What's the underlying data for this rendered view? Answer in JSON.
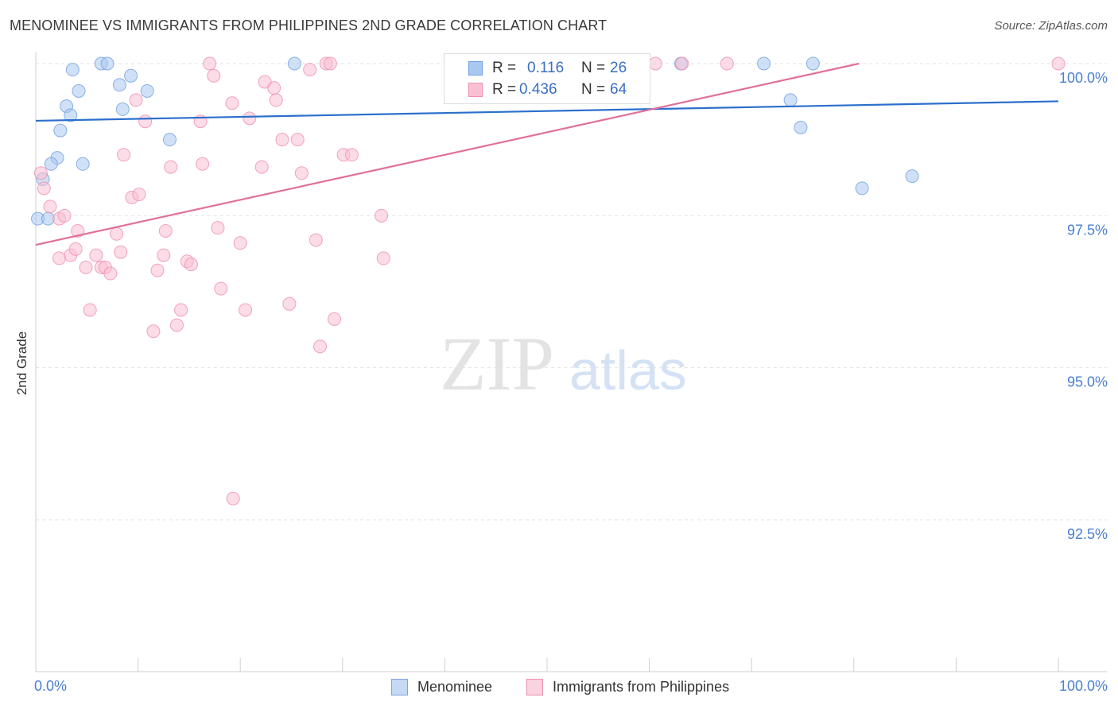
{
  "title": "MENOMINEE VS IMMIGRANTS FROM PHILIPPINES 2ND GRADE CORRELATION CHART",
  "source": "Source: ZipAtlas.com",
  "watermark": {
    "zip": "ZIP",
    "atlas": "atlas"
  },
  "stats": {
    "r_label": "R =",
    "n_label": "N =",
    "rows": [
      {
        "r": "0.116",
        "n": "26",
        "color": "#a9c8f0",
        "border": "#6f9fe0"
      },
      {
        "r": "0.436",
        "n": "64",
        "color": "#f9c0d3",
        "border": "#ef8db0"
      }
    ]
  },
  "legend": {
    "items": [
      {
        "label": "Menominee",
        "color": "#c5d9f5",
        "border": "#7ba5e3"
      },
      {
        "label": "Immigrants from Philippines",
        "color": "#fbd2df",
        "border": "#ec8fb0"
      }
    ]
  },
  "chart_data": {
    "type": "scatter",
    "title": "MENOMINEE VS IMMIGRANTS FROM PHILIPPINES 2ND GRADE CORRELATION CHART",
    "xlabel": "",
    "ylabel": "2nd Grade",
    "xlim": [
      0,
      100
    ],
    "ylim": [
      90.0,
      100.4
    ],
    "x_tick_labels": [
      {
        "value": 0,
        "label": "0.0%"
      },
      {
        "value": 100,
        "label": "100.0%"
      }
    ],
    "y_ticks": [
      {
        "value": 100.0,
        "label": "100.0%"
      },
      {
        "value": 97.5,
        "label": "97.5%"
      },
      {
        "value": 95.0,
        "label": "95.0%"
      },
      {
        "value": 92.5,
        "label": "92.5%"
      }
    ],
    "series": [
      {
        "name": "Menominee",
        "color": "#a9c8f0",
        "stroke": "#6f9fe0",
        "trend_color": "#2b6fcc",
        "trend": {
          "x0": 0,
          "y0": 99.06,
          "x1": 100,
          "y1": 99.38
        },
        "points": [
          [
            6.4,
            100.0
          ],
          [
            7.0,
            100.0
          ],
          [
            3.6,
            99.9
          ],
          [
            9.3,
            99.8
          ],
          [
            8.2,
            99.65
          ],
          [
            4.2,
            99.55
          ],
          [
            10.9,
            99.55
          ],
          [
            3.0,
            99.3
          ],
          [
            8.5,
            99.25
          ],
          [
            3.4,
            99.15
          ],
          [
            2.4,
            98.9
          ],
          [
            13.1,
            98.75
          ],
          [
            2.1,
            98.45
          ],
          [
            1.5,
            98.35
          ],
          [
            4.6,
            98.35
          ],
          [
            0.7,
            98.1
          ],
          [
            0.2,
            97.45
          ],
          [
            1.2,
            97.45
          ],
          [
            25.3,
            100.0
          ],
          [
            63.1,
            100.0
          ],
          [
            71.2,
            100.0
          ],
          [
            76.0,
            100.0
          ],
          [
            73.8,
            99.4
          ],
          [
            74.8,
            98.95
          ],
          [
            80.8,
            97.95
          ],
          [
            85.7,
            98.15
          ]
        ]
      },
      {
        "name": "Immigrants from Philippines",
        "color": "#f9c0d3",
        "stroke": "#ef8db0",
        "trend_color": "#e0709a",
        "trend": {
          "x0": 0,
          "y0": 97.02,
          "x1": 80.5,
          "y1": 100.0
        },
        "points": [
          [
            0.5,
            98.2
          ],
          [
            0.8,
            97.95
          ],
          [
            1.4,
            97.65
          ],
          [
            2.3,
            97.45
          ],
          [
            2.8,
            97.5
          ],
          [
            2.3,
            96.8
          ],
          [
            3.4,
            96.85
          ],
          [
            3.9,
            96.95
          ],
          [
            4.1,
            97.25
          ],
          [
            4.9,
            96.65
          ],
          [
            5.9,
            96.85
          ],
          [
            6.4,
            96.65
          ],
          [
            6.8,
            96.65
          ],
          [
            7.3,
            96.55
          ],
          [
            7.9,
            97.2
          ],
          [
            8.3,
            96.9
          ],
          [
            5.3,
            95.95
          ],
          [
            8.6,
            98.5
          ],
          [
            9.4,
            97.8
          ],
          [
            10.1,
            97.85
          ],
          [
            9.8,
            99.4
          ],
          [
            10.7,
            99.05
          ],
          [
            11.5,
            95.6
          ],
          [
            11.9,
            96.6
          ],
          [
            12.5,
            96.85
          ],
          [
            12.7,
            97.25
          ],
          [
            13.2,
            98.3
          ],
          [
            13.8,
            95.7
          ],
          [
            14.2,
            95.95
          ],
          [
            14.8,
            96.75
          ],
          [
            15.2,
            96.7
          ],
          [
            16.1,
            99.05
          ],
          [
            16.3,
            98.35
          ],
          [
            17.0,
            100.0
          ],
          [
            17.4,
            99.8
          ],
          [
            17.8,
            97.3
          ],
          [
            18.1,
            96.3
          ],
          [
            19.2,
            99.35
          ],
          [
            19.3,
            92.85
          ],
          [
            20.0,
            97.05
          ],
          [
            20.5,
            95.95
          ],
          [
            20.9,
            99.1
          ],
          [
            22.1,
            98.3
          ],
          [
            22.4,
            99.7
          ],
          [
            23.3,
            99.6
          ],
          [
            23.5,
            99.4
          ],
          [
            24.1,
            98.75
          ],
          [
            24.8,
            96.05
          ],
          [
            25.6,
            98.75
          ],
          [
            26.0,
            98.2
          ],
          [
            26.8,
            99.9
          ],
          [
            27.4,
            97.1
          ],
          [
            27.8,
            95.35
          ],
          [
            28.4,
            100.0
          ],
          [
            28.8,
            100.0
          ],
          [
            29.2,
            95.8
          ],
          [
            30.1,
            98.5
          ],
          [
            30.9,
            98.5
          ],
          [
            33.8,
            97.5
          ],
          [
            34.0,
            96.8
          ],
          [
            60.6,
            100.0
          ],
          [
            63.2,
            100.0
          ],
          [
            67.6,
            100.0
          ],
          [
            100.0,
            100.0
          ]
        ]
      }
    ]
  }
}
